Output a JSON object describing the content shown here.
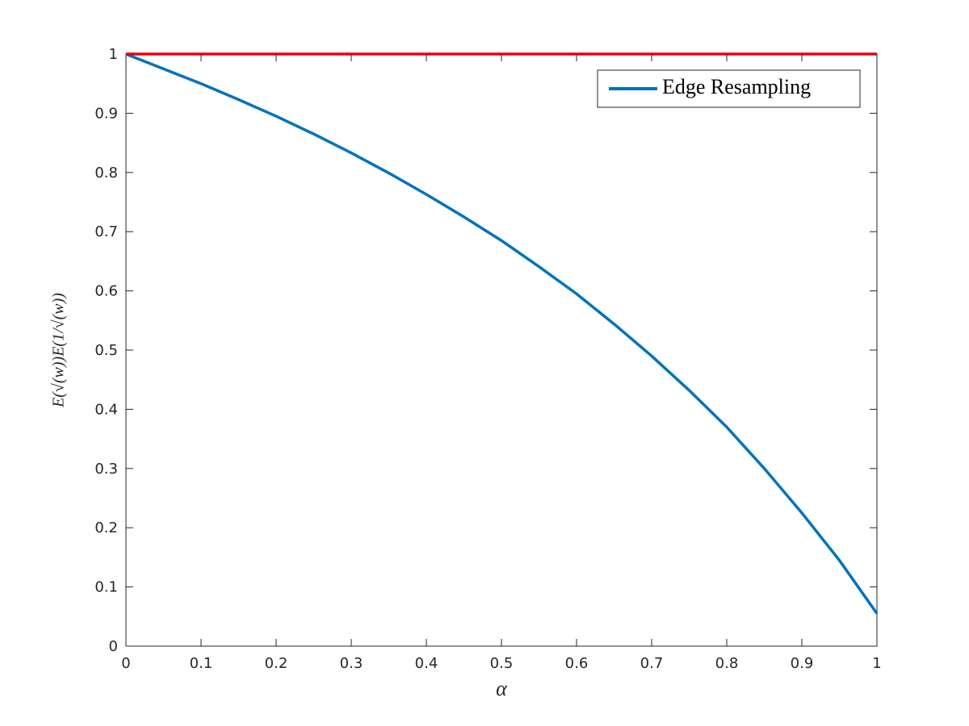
{
  "chart_data": {
    "type": "line",
    "xlabel": "α",
    "ylabel": "E(√(w))E(1/√(w))",
    "x": [
      0,
      0.05,
      0.1,
      0.15,
      0.2,
      0.25,
      0.3,
      0.35,
      0.4,
      0.45,
      0.5,
      0.55,
      0.6,
      0.65,
      0.7,
      0.75,
      0.8,
      0.85,
      0.9,
      0.95,
      1
    ],
    "series": [
      {
        "name": "Edge Resampling",
        "color": "#0072bd",
        "values": [
          1.0,
          0.975,
          0.95,
          0.923,
          0.895,
          0.865,
          0.833,
          0.799,
          0.763,
          0.725,
          0.685,
          0.641,
          0.595,
          0.544,
          0.49,
          0.432,
          0.37,
          0.3,
          0.225,
          0.145,
          0.055
        ]
      },
      {
        "color": "#e3000f",
        "values": [
          1,
          1,
          1,
          1,
          1,
          1,
          1,
          1,
          1,
          1,
          1,
          1,
          1,
          1,
          1,
          1,
          1,
          1,
          1,
          1,
          1
        ]
      }
    ],
    "xlim": [
      0,
      1
    ],
    "ylim": [
      0,
      1
    ],
    "xticks": [
      0,
      0.1,
      0.2,
      0.3,
      0.4,
      0.5,
      0.6,
      0.7,
      0.8,
      0.9,
      1
    ],
    "yticks": [
      0,
      0.1,
      0.2,
      0.3,
      0.4,
      0.5,
      0.6,
      0.7,
      0.8,
      0.9,
      1
    ],
    "grid": false,
    "legend": "northeast"
  }
}
